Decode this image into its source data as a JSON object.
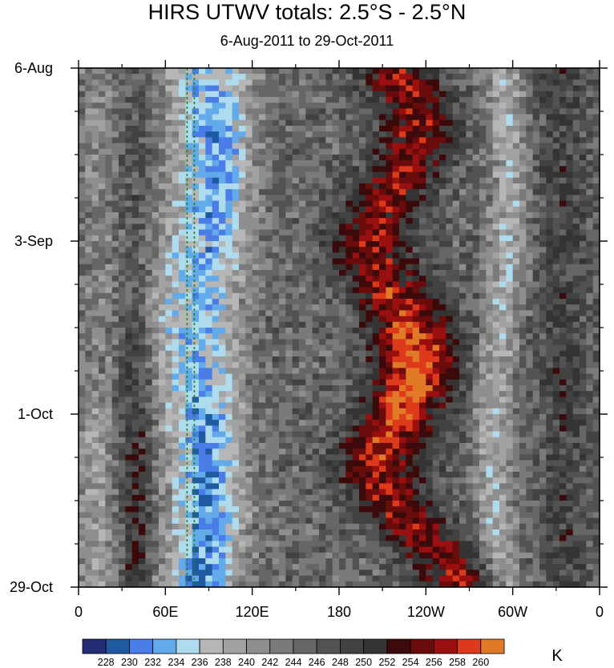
{
  "title": "HIRS UTWV totals: 2.5°S - 2.5°N",
  "subtitle": "6-Aug-2011 to 29-Oct-2011",
  "units_label": "K",
  "chart_data": {
    "type": "heatmap",
    "x_ticks": [
      {
        "lon": 0,
        "label": "0"
      },
      {
        "lon": 60,
        "label": "60E"
      },
      {
        "lon": 120,
        "label": "120E"
      },
      {
        "lon": 180,
        "label": "180"
      },
      {
        "lon": 240,
        "label": "120W"
      },
      {
        "lon": 300,
        "label": "60W"
      },
      {
        "lon": 360,
        "label": "0"
      }
    ],
    "x_range": [
      0,
      360
    ],
    "y_ticks": [
      {
        "day": 0,
        "label": "6-Aug"
      },
      {
        "day": 28,
        "label": "3-Sep"
      },
      {
        "day": 56,
        "label": "1-Oct"
      },
      {
        "day": 84,
        "label": "29-Oct"
      }
    ],
    "y_range": [
      0,
      84
    ],
    "y_minor_every_days": 7,
    "x_minor_every_deg": 30,
    "colorbar_levels": [
      228,
      230,
      232,
      234,
      236,
      238,
      240,
      242,
      244,
      246,
      248,
      250,
      252,
      254,
      256,
      258,
      260
    ],
    "colorbar_colors": [
      "#232c74",
      "#1f5aa0",
      "#4a7de8",
      "#62aaea",
      "#aedcee",
      "#b6b6b6",
      "#a2a2a2",
      "#8e8e8e",
      "#7a7a7a",
      "#666666",
      "#525252",
      "#424242",
      "#343434",
      "#3c0a0a",
      "#6a0c0c",
      "#9a1010",
      "#dc3a1a",
      "#e07a26"
    ],
    "reference_lines_lon": [
      75,
      80
    ],
    "notable_features": [
      {
        "feature": "moist band",
        "lon_range": [
          50,
          115
        ],
        "values": "228-236"
      },
      {
        "feature": "dry band",
        "lon_range": [
          185,
          280
        ],
        "values": "252-260"
      },
      {
        "feature": "moist band",
        "lon_range": [
          280,
          310
        ],
        "values": "232-236"
      }
    ]
  }
}
